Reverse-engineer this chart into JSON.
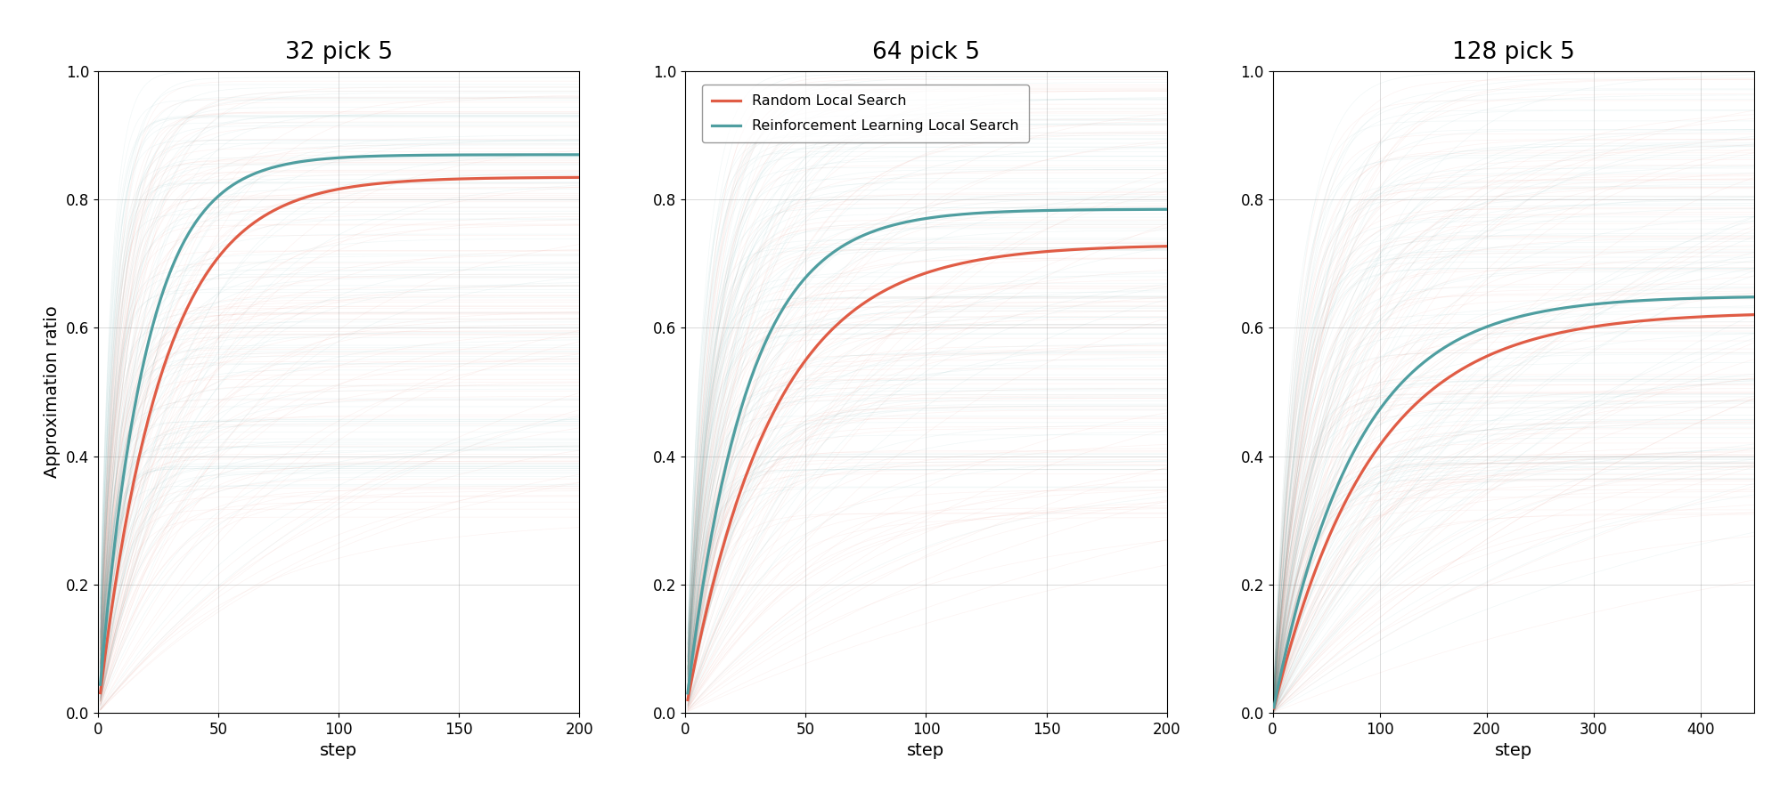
{
  "titles": [
    "32 pick 5",
    "64 pick 5",
    "128 pick 5"
  ],
  "ylim": [
    0.0,
    1.0
  ],
  "yticks": [
    0.0,
    0.2,
    0.4,
    0.6,
    0.8,
    1.0
  ],
  "xlabel": "step",
  "ylabel": "Approximation ratio",
  "legend_labels": [
    "Random Local Search",
    "Reinforcement Learning Local Search"
  ],
  "rls_color": "#E05C45",
  "rl_color": "#4F9EA0",
  "n_trajectories": 120,
  "seed": 7,
  "configs": [
    {
      "steps": 200,
      "rls_a": 0.835,
      "rls_b": 0.038,
      "rl_a": 0.87,
      "rl_b": 0.052,
      "xticks": [
        0,
        50,
        100,
        150,
        200
      ],
      "xlim": 200
    },
    {
      "steps": 200,
      "rls_a": 0.73,
      "rls_b": 0.028,
      "rl_a": 0.785,
      "rl_b": 0.04,
      "xticks": [
        0,
        50,
        100,
        150,
        200
      ],
      "xlim": 200
    },
    {
      "steps": 450,
      "rls_a": 0.625,
      "rls_b": 0.011,
      "rl_a": 0.65,
      "rl_b": 0.013,
      "xticks": [
        0,
        100,
        200,
        300,
        400
      ],
      "xlim": 450
    }
  ]
}
